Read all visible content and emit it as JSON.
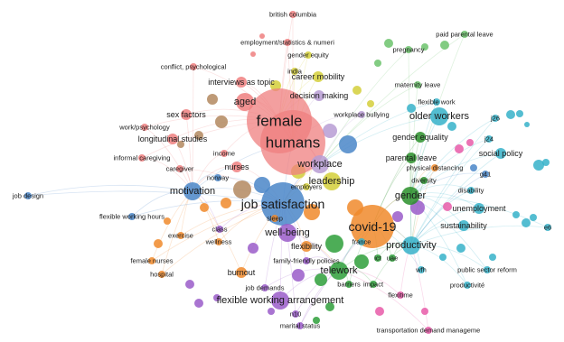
{
  "keywords": [
    {
      "id": "humans",
      "text": "humans",
      "color": "#ef7f7f",
      "size": "xl"
    },
    {
      "id": "female",
      "text": "female",
      "color": "#ef7f7f",
      "size": "xl"
    },
    {
      "id": "job-satisfaction",
      "text": "job satisfaction",
      "color": "#4a86c8",
      "size": "lg"
    },
    {
      "id": "covid-19",
      "text": "covid-19",
      "color": "#f08a2c",
      "size": "lg"
    },
    {
      "id": "workplace",
      "text": "workplace",
      "color": "#b79cd3",
      "size": "md"
    },
    {
      "id": "gender",
      "text": "gender",
      "color": "#2a8f2a",
      "size": "md"
    },
    {
      "id": "leadership",
      "text": "leadership",
      "color": "#d4cf3a",
      "size": "md"
    },
    {
      "id": "well-being",
      "text": "well-being",
      "color": "#9a5cc9",
      "size": "md"
    },
    {
      "id": "productivity",
      "text": "productivity",
      "color": "#36b1c9",
      "size": "md"
    },
    {
      "id": "telework",
      "text": "telework",
      "color": "#2e9f3a",
      "size": "md"
    },
    {
      "id": "motivation",
      "text": "motivation",
      "color": "#4a86c8",
      "size": "md"
    },
    {
      "id": "aged",
      "text": "aged",
      "color": "#ef7f7f",
      "size": "md"
    },
    {
      "id": "flexible-working-arrangement",
      "text": "flexible working arrangement",
      "color": "#9a5cc9",
      "size": "md"
    },
    {
      "id": "older-workers",
      "text": "older workers",
      "color": "#36b1c9",
      "size": "md"
    },
    {
      "id": "decision-making",
      "text": "decision making",
      "color": "#b79cd3",
      "size": "sm"
    },
    {
      "id": "career-mobility",
      "text": "career mobility",
      "color": "#d4cf3a",
      "size": "sm"
    },
    {
      "id": "interviews-as-topic",
      "text": "interviews as topic",
      "color": "#ef7f7f",
      "size": "sm"
    },
    {
      "id": "sex-factors",
      "text": "sex factors",
      "color": "#ef7f7f",
      "size": "sm"
    },
    {
      "id": "longitudinal-studies",
      "text": "longitudinal studies",
      "color": "#ef7f7f",
      "size": "sm"
    },
    {
      "id": "nurses",
      "text": "nurses",
      "color": "#ef7f7f",
      "size": "sm"
    },
    {
      "id": "gender-equality",
      "text": "gender equality",
      "color": "#2a8f2a",
      "size": "sm"
    },
    {
      "id": "parental-leave",
      "text": "parental leave",
      "color": "#2a8f2a",
      "size": "sm"
    },
    {
      "id": "sustainability",
      "text": "sustainability",
      "color": "#36b1c9",
      "size": "sm"
    },
    {
      "id": "unemployment",
      "text": "unemployment",
      "color": "#36b1c9",
      "size": "sm"
    },
    {
      "id": "social-policy",
      "text": "social policy",
      "color": "#36b1c9",
      "size": "sm"
    },
    {
      "id": "flexibility",
      "text": "flexibility",
      "color": "#f08a2c",
      "size": "sm"
    },
    {
      "id": "burnout",
      "text": "burnout",
      "color": "#f08a2c",
      "size": "sm"
    },
    {
      "id": "exercise",
      "text": "exercise",
      "color": "#f08a2c",
      "size": "xs"
    },
    {
      "id": "hospital",
      "text": "hospital",
      "color": "#f08a2c",
      "size": "xs"
    },
    {
      "id": "female-nurses",
      "text": "female nurses",
      "color": "#f08a2c",
      "size": "xs"
    },
    {
      "id": "job-design",
      "text": "job design",
      "color": "#4a86c8",
      "size": "xs"
    },
    {
      "id": "flexible-working-hours",
      "text": "flexible working hours",
      "color": "#4a86c8",
      "size": "xs"
    },
    {
      "id": "informal-caregiving",
      "text": "informal caregiving",
      "color": "#ef7f7f",
      "size": "xs"
    },
    {
      "id": "work-psychology",
      "text": "work/psychology",
      "color": "#ef7f7f",
      "size": "xs"
    },
    {
      "id": "conflict-psychological",
      "text": "conflict, psychological",
      "color": "#ef7f7f",
      "size": "xs"
    },
    {
      "id": "employment-statistics",
      "text": "employment/statistics & numeri",
      "color": "#ef7f7f",
      "size": "xs"
    },
    {
      "id": "gender-equity",
      "text": "gender equity",
      "color": "#d4cf3a",
      "size": "xs"
    },
    {
      "id": "british-columbia",
      "text": "british columbia",
      "color": "#ef7f7f",
      "size": "xs"
    },
    {
      "id": "india",
      "text": "india",
      "color": "#d4cf3a",
      "size": "xs"
    },
    {
      "id": "pregnancy",
      "text": "pregnancy",
      "color": "#6cc36c",
      "size": "xs"
    },
    {
      "id": "paid-parental-leave",
      "text": "paid parental leave",
      "color": "#6cc36c",
      "size": "xs"
    },
    {
      "id": "maternity-leave",
      "text": "maternity leave",
      "color": "#6cc36c",
      "size": "xs"
    },
    {
      "id": "flexible-work",
      "text": "flexible work",
      "color": "#36b1c9",
      "size": "xs"
    },
    {
      "id": "workplace-bullying",
      "text": "workplace bullying",
      "color": "#b79cd3",
      "size": "xs"
    },
    {
      "id": "j26",
      "text": "j26",
      "color": "#36b1c9",
      "size": "xs"
    },
    {
      "id": "j24",
      "text": "j24",
      "color": "#36b1c9",
      "size": "xs"
    },
    {
      "id": "g41",
      "text": "g41",
      "color": "#4a86c8",
      "size": "xs"
    },
    {
      "id": "e6",
      "text": "e6",
      "color": "#36b1c9",
      "size": "xs"
    },
    {
      "id": "physical-distancing",
      "text": "physical distancing",
      "color": "#f08a2c",
      "size": "xs"
    },
    {
      "id": "diversity",
      "text": "diversity",
      "color": "#2a8f2a",
      "size": "xs"
    },
    {
      "id": "disability",
      "text": "disability",
      "color": "#36b1c9",
      "size": "xs"
    },
    {
      "id": "income",
      "text": "income",
      "color": "#ef7f7f",
      "size": "xs"
    },
    {
      "id": "caregiver",
      "text": "caregiver",
      "color": "#ef7f7f",
      "size": "xs"
    },
    {
      "id": "norway",
      "text": "norway",
      "color": "#4a86c8",
      "size": "xs"
    },
    {
      "id": "employers",
      "text": "employers",
      "color": "#d4cf3a",
      "size": "xs"
    },
    {
      "id": "sleep",
      "text": "sleep",
      "color": "#f08a2c",
      "size": "xs"
    },
    {
      "id": "class",
      "text": "class",
      "color": "#9a5cc9",
      "size": "xs"
    },
    {
      "id": "wellness",
      "text": "wellness",
      "color": "#f08a2c",
      "size": "xs"
    },
    {
      "id": "france",
      "text": "france",
      "color": "#36b1c9",
      "size": "xs"
    },
    {
      "id": "family-friendly-policies",
      "text": "family-friendly policies",
      "color": "#9a5cc9",
      "size": "xs"
    },
    {
      "id": "ict",
      "text": "ict",
      "color": "#2e9f3a",
      "size": "xs"
    },
    {
      "id": "uae",
      "text": "uae",
      "color": "#2e9f3a",
      "size": "xs"
    },
    {
      "id": "wfh",
      "text": "wfh",
      "color": "#36b1c9",
      "size": "xs"
    },
    {
      "id": "public-sector-reform",
      "text": "public sector reform",
      "color": "#36b1c9",
      "size": "xs"
    },
    {
      "id": "productivite",
      "text": "productivité",
      "color": "#36b1c9",
      "size": "xs"
    },
    {
      "id": "barriers",
      "text": "barriers",
      "color": "#2e9f3a",
      "size": "xs"
    },
    {
      "id": "impact",
      "text": "impact",
      "color": "#2e9f3a",
      "size": "xs"
    },
    {
      "id": "flexitime",
      "text": "flexitime",
      "color": "#e75aa8",
      "size": "xs"
    },
    {
      "id": "job-demands",
      "text": "job demands",
      "color": "#9a5cc9",
      "size": "xs"
    },
    {
      "id": "n10",
      "text": "n10",
      "color": "#9a5cc9",
      "size": "xs"
    },
    {
      "id": "marital-status",
      "text": "marital status",
      "color": "#9a5cc9",
      "size": "xs"
    },
    {
      "id": "transportation-demand",
      "text": "transportation demand manageme",
      "color": "#e75aa8",
      "size": "xs"
    }
  ]
}
